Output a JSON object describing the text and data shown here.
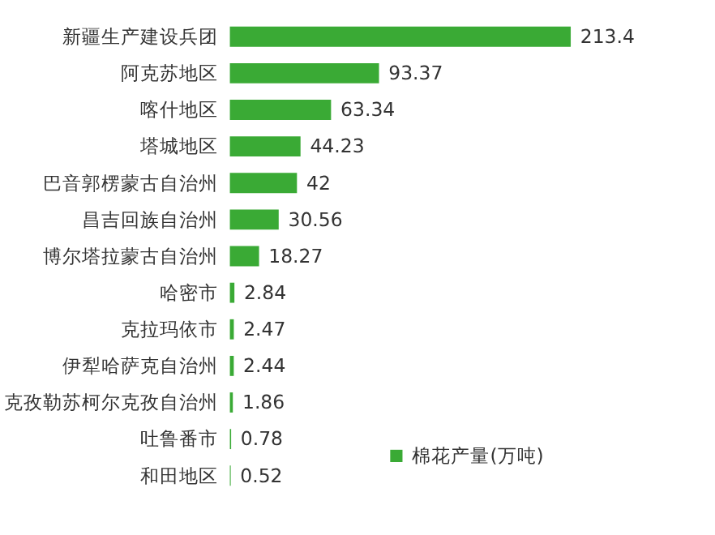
{
  "chart_data": {
    "type": "bar",
    "orientation": "horizontal",
    "categories": [
      "新疆生产建设兵团",
      "阿克苏地区",
      "喀什地区",
      "塔城地区",
      "巴音郭楞蒙古自治州",
      "昌吉回族自治州",
      "博尔塔拉蒙古自治州",
      "哈密市",
      "克拉玛依市",
      "伊犁哈萨克自治州",
      "克孜勒苏柯尔克孜自治州",
      "吐鲁番市",
      "和田地区"
    ],
    "series": [
      {
        "name": "棉花产量(万吨)",
        "color": "#3aaa35",
        "values": [
          213.4,
          93.37,
          63.34,
          44.23,
          42,
          30.56,
          18.27,
          2.84,
          2.47,
          2.44,
          1.86,
          0.78,
          0.52
        ]
      }
    ],
    "data_labels": true,
    "legend": "bottom right",
    "tick_labels": "y",
    "grid": false
  }
}
